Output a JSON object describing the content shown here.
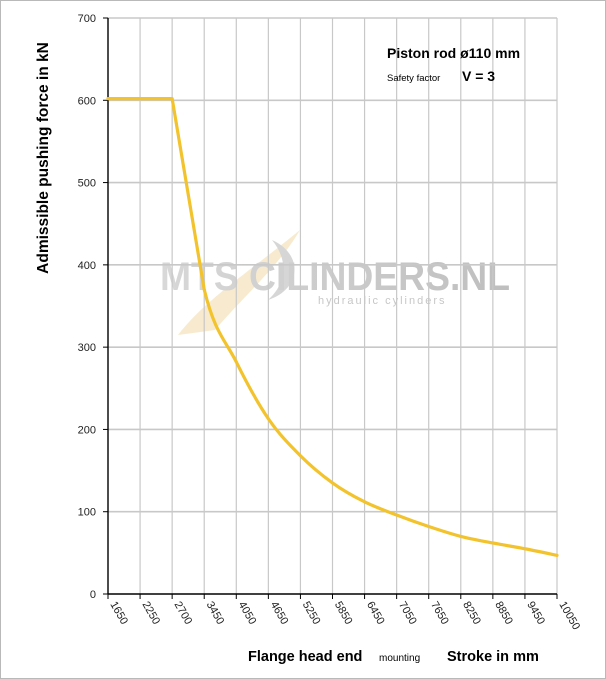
{
  "chart_data": {
    "type": "line",
    "title": "Piston rod ø110 mm",
    "subtitle_label": "Safety factor",
    "subtitle_value": "V = 3",
    "ylabel": "Admissible pushing  force in kN",
    "xlabel_part1": "Flange head end",
    "xlabel_part2": "mounting",
    "xlabel_part3": "Stroke in mm",
    "watermark_main": "MTS CILINDERS.NL",
    "watermark_sub": "hydraulic  cylinders",
    "ylim": [
      0,
      700
    ],
    "yticks": [
      "0",
      "100",
      "200",
      "300",
      "400",
      "500",
      "600",
      "700"
    ],
    "categories": [
      "1650",
      "2250",
      "2700",
      "3450",
      "4050",
      "4650",
      "5250",
      "5850",
      "6450",
      "7050",
      "7650",
      "8250",
      "8850",
      "9450",
      "10050"
    ],
    "series": [
      {
        "values": [
          602,
          602,
          602,
          370,
          282,
          213,
          168,
          135,
          112,
          96,
          82,
          70,
          62,
          55,
          47
        ],
        "color": "#f2c32c"
      }
    ],
    "grid": true,
    "colors": {
      "line": "#f2c32c",
      "grid": "#c8c8c8",
      "axis": "#000000"
    }
  }
}
